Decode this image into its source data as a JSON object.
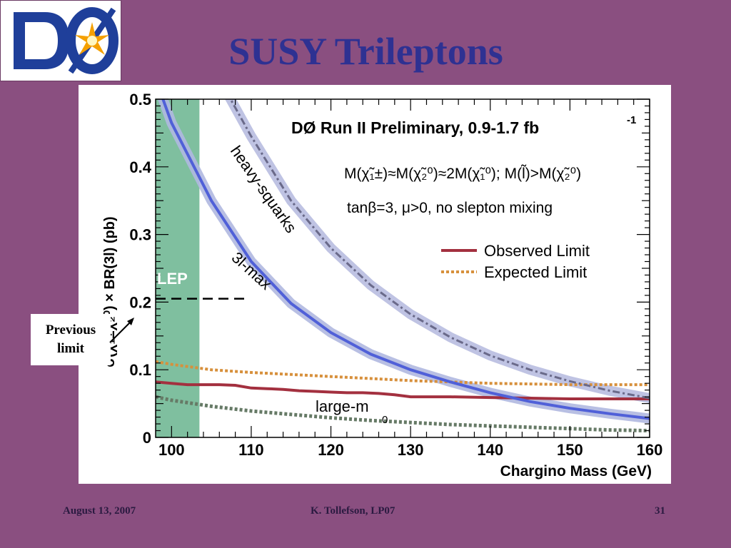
{
  "slide": {
    "title": "SUSY Trileptons",
    "callout": [
      "Previous",
      "limit"
    ],
    "footer": {
      "date": "August 13, 2007",
      "author": "K. Tollefson, LP07",
      "page": "31"
    },
    "logo": {
      "text": "DØ",
      "colors": {
        "letters": "#1f3f9a",
        "star": "#f5a000"
      }
    }
  },
  "chart_data": {
    "type": "line",
    "title": "DØ Run II Preliminary, 0.9-1.7 fb",
    "title_superscript": "-1",
    "model_line1": "M(χ̃₁±)≈M(χ̃₂⁰)≈2M(χ̃₁⁰); M(l̃)>M(χ̃₂⁰)",
    "model_line2": "tanβ=3, μ>0, no slepton mixing",
    "xlabel": "Chargino Mass (GeV)",
    "ylabel": "σ(χ̃₁±χ̃₂⁰) × BR(3l) (pb)",
    "xlim": [
      98,
      160
    ],
    "ylim": [
      0,
      0.5
    ],
    "xticks": [
      100,
      110,
      120,
      130,
      140,
      150,
      160
    ],
    "yticks": [
      0,
      0.1,
      0.2,
      0.3,
      0.4,
      0.5
    ],
    "ytick_labels": [
      "0",
      "0.1",
      "0.2",
      "0.3",
      "0.4",
      "0.5"
    ],
    "legend_position": "right",
    "legend": [
      {
        "name": "Observed Limit",
        "color": "#a3303f",
        "style": "solid"
      },
      {
        "name": "Expected Limit",
        "color": "#d7903c",
        "style": "dotted"
      }
    ],
    "excluded_region": {
      "label": "LEP",
      "x": [
        98,
        103.5
      ],
      "color": "#7fbf9f"
    },
    "previous_limit": {
      "y": 0.205,
      "x": [
        98,
        109.5
      ]
    },
    "series": [
      {
        "id": "observed",
        "color": "#a3303f",
        "style": "solid",
        "x": [
          98,
          100,
          102,
          104,
          106,
          108,
          110,
          112,
          114,
          116,
          118,
          120,
          122,
          124,
          126,
          128,
          130,
          135,
          140,
          145,
          150,
          155,
          160
        ],
        "y": [
          0.082,
          0.08,
          0.078,
          0.078,
          0.078,
          0.077,
          0.073,
          0.072,
          0.071,
          0.069,
          0.068,
          0.067,
          0.066,
          0.066,
          0.065,
          0.063,
          0.06,
          0.06,
          0.059,
          0.058,
          0.057,
          0.057,
          0.057
        ]
      },
      {
        "id": "expected",
        "color": "#d7903c",
        "style": "dotted",
        "x": [
          98,
          100,
          105,
          110,
          115,
          120,
          125,
          130,
          135,
          140,
          145,
          150,
          155,
          160
        ],
        "y": [
          0.112,
          0.108,
          0.1,
          0.096,
          0.093,
          0.09,
          0.087,
          0.084,
          0.082,
          0.08,
          0.079,
          0.078,
          0.078,
          0.078
        ]
      },
      {
        "id": "3l-max",
        "label": "3l-max",
        "color": "#5060d8",
        "band_color": "#b0b8e0",
        "style": "solid",
        "x": [
          98,
          100,
          105,
          110,
          115,
          120,
          125,
          130,
          135,
          140,
          145,
          150,
          155,
          160
        ],
        "y": [
          0.53,
          0.465,
          0.35,
          0.26,
          0.198,
          0.155,
          0.123,
          0.1,
          0.082,
          0.066,
          0.053,
          0.043,
          0.035,
          0.028
        ]
      },
      {
        "id": "heavy-squarks",
        "label": "heavy-squarks",
        "color": "#6a6a8a",
        "band_color": "#b8bce0",
        "style": "dashdot",
        "x": [
          106,
          110,
          115,
          120,
          125,
          130,
          135,
          140,
          145,
          150,
          155,
          160
        ],
        "y": [
          0.53,
          0.445,
          0.35,
          0.28,
          0.225,
          0.182,
          0.148,
          0.121,
          0.1,
          0.083,
          0.069,
          0.058
        ]
      },
      {
        "id": "large-m0",
        "label": "large-m",
        "label_subscript": "0",
        "color": "#667a66",
        "style": "dotted",
        "x": [
          98,
          100,
          105,
          110,
          115,
          120,
          125,
          130,
          135,
          140,
          145,
          150,
          155,
          160
        ],
        "y": [
          0.06,
          0.055,
          0.046,
          0.039,
          0.034,
          0.029,
          0.025,
          0.022,
          0.019,
          0.017,
          0.015,
          0.013,
          0.011,
          0.01
        ]
      }
    ]
  }
}
